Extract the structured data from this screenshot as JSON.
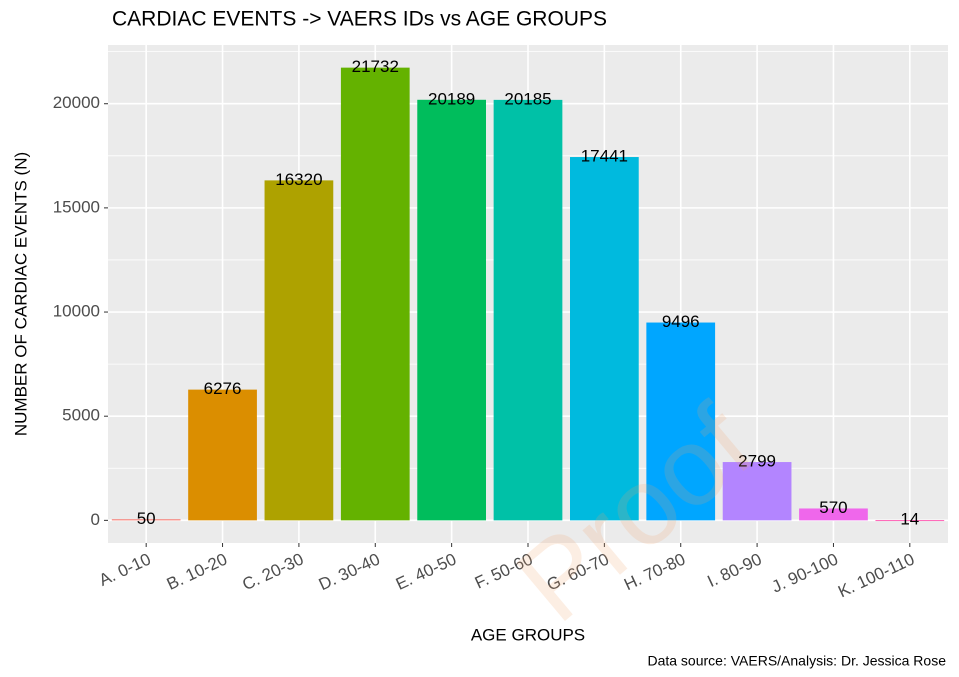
{
  "chart_data": {
    "type": "bar",
    "title": "CARDIAC EVENTS -> VAERS IDs vs AGE GROUPS",
    "x_label": "AGE GROUPS",
    "y_label": "NUMBER OF CARDIAC EVENTS (N)",
    "caption": "Data source: VAERS/Analysis: Dr. Jessica Rose",
    "watermark": "Proof",
    "categories": [
      "A. 0-10",
      "B. 10-20",
      "C. 20-30",
      "D. 30-40",
      "E. 40-50",
      "F. 50-60",
      "G. 60-70",
      "H. 70-80",
      "I. 80-90",
      "J. 90-100",
      "K. 100-110"
    ],
    "values": [
      50,
      6276,
      16320,
      21732,
      20189,
      20185,
      17441,
      9496,
      2799,
      570,
      14
    ],
    "colors": [
      "#F8766D",
      "#DB8E00",
      "#AEA200",
      "#64B200",
      "#00BD5C",
      "#00C1A7",
      "#00BADE",
      "#00A6FF",
      "#B385FF",
      "#EF67EB",
      "#FF63B6"
    ],
    "ylim": [
      -1087,
      22819
    ],
    "yticks": [
      0,
      5000,
      10000,
      15000,
      20000
    ],
    "grid": true
  }
}
